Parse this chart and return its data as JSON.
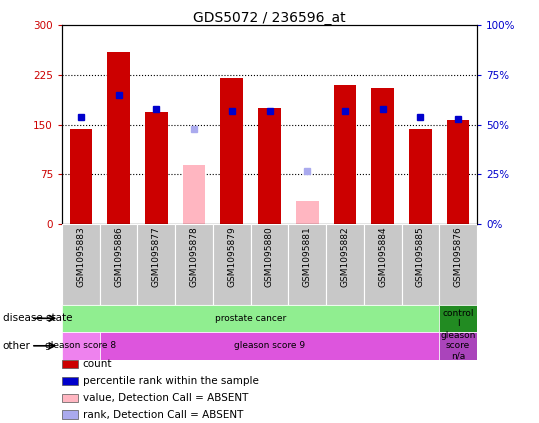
{
  "title": "GDS5072 / 236596_at",
  "samples": [
    "GSM1095883",
    "GSM1095886",
    "GSM1095877",
    "GSM1095878",
    "GSM1095879",
    "GSM1095880",
    "GSM1095881",
    "GSM1095882",
    "GSM1095884",
    "GSM1095885",
    "GSM1095876"
  ],
  "bar_values": [
    143,
    260,
    170,
    null,
    220,
    175,
    null,
    210,
    205,
    143,
    157
  ],
  "absent_bar_values": [
    null,
    null,
    null,
    90,
    null,
    null,
    35,
    null,
    null,
    null,
    null
  ],
  "rank_values": [
    54,
    65,
    58,
    null,
    57,
    57,
    null,
    57,
    58,
    54,
    53
  ],
  "absent_rank_values": [
    null,
    null,
    null,
    48,
    null,
    null,
    27,
    null,
    null,
    null,
    null
  ],
  "ylim_left": [
    0,
    300
  ],
  "ylim_right": [
    0,
    100
  ],
  "yticks_left": [
    0,
    75,
    150,
    225,
    300
  ],
  "yticks_right": [
    0,
    25,
    50,
    75,
    100
  ],
  "ytick_labels_left": [
    "0",
    "75",
    "150",
    "225",
    "300"
  ],
  "ytick_labels_right": [
    "0%",
    "25%",
    "50%",
    "75%",
    "100%"
  ],
  "grid_values": [
    75,
    150,
    225
  ],
  "disease_state_groups": [
    {
      "label": "prostate cancer",
      "start": 0,
      "end": 10,
      "color": "#90ee90"
    },
    {
      "label": "control\nl",
      "start": 10,
      "end": 11,
      "color": "#228b22"
    }
  ],
  "other_groups": [
    {
      "label": "gleason score 8",
      "start": 0,
      "end": 1,
      "color": "#ee82ee"
    },
    {
      "label": "gleason score 9",
      "start": 1,
      "end": 10,
      "color": "#dd55dd"
    },
    {
      "label": "gleason\nscore\nn/a",
      "start": 10,
      "end": 11,
      "color": "#aa44bb"
    }
  ],
  "legend_items": [
    {
      "label": "count",
      "color": "#cc0000"
    },
    {
      "label": "percentile rank within the sample",
      "color": "#0000cc"
    },
    {
      "label": "value, Detection Call = ABSENT",
      "color": "#ffb6c1"
    },
    {
      "label": "rank, Detection Call = ABSENT",
      "color": "#aaaaee"
    }
  ],
  "background_color": "#ffffff",
  "plot_bg_color": "#ffffff",
  "tick_bg_color": "#c8c8c8",
  "bar_color": "#cc0000",
  "absent_bar_color": "#ffb6c1",
  "rank_color": "#0000cc",
  "absent_rank_color": "#aaaaee"
}
